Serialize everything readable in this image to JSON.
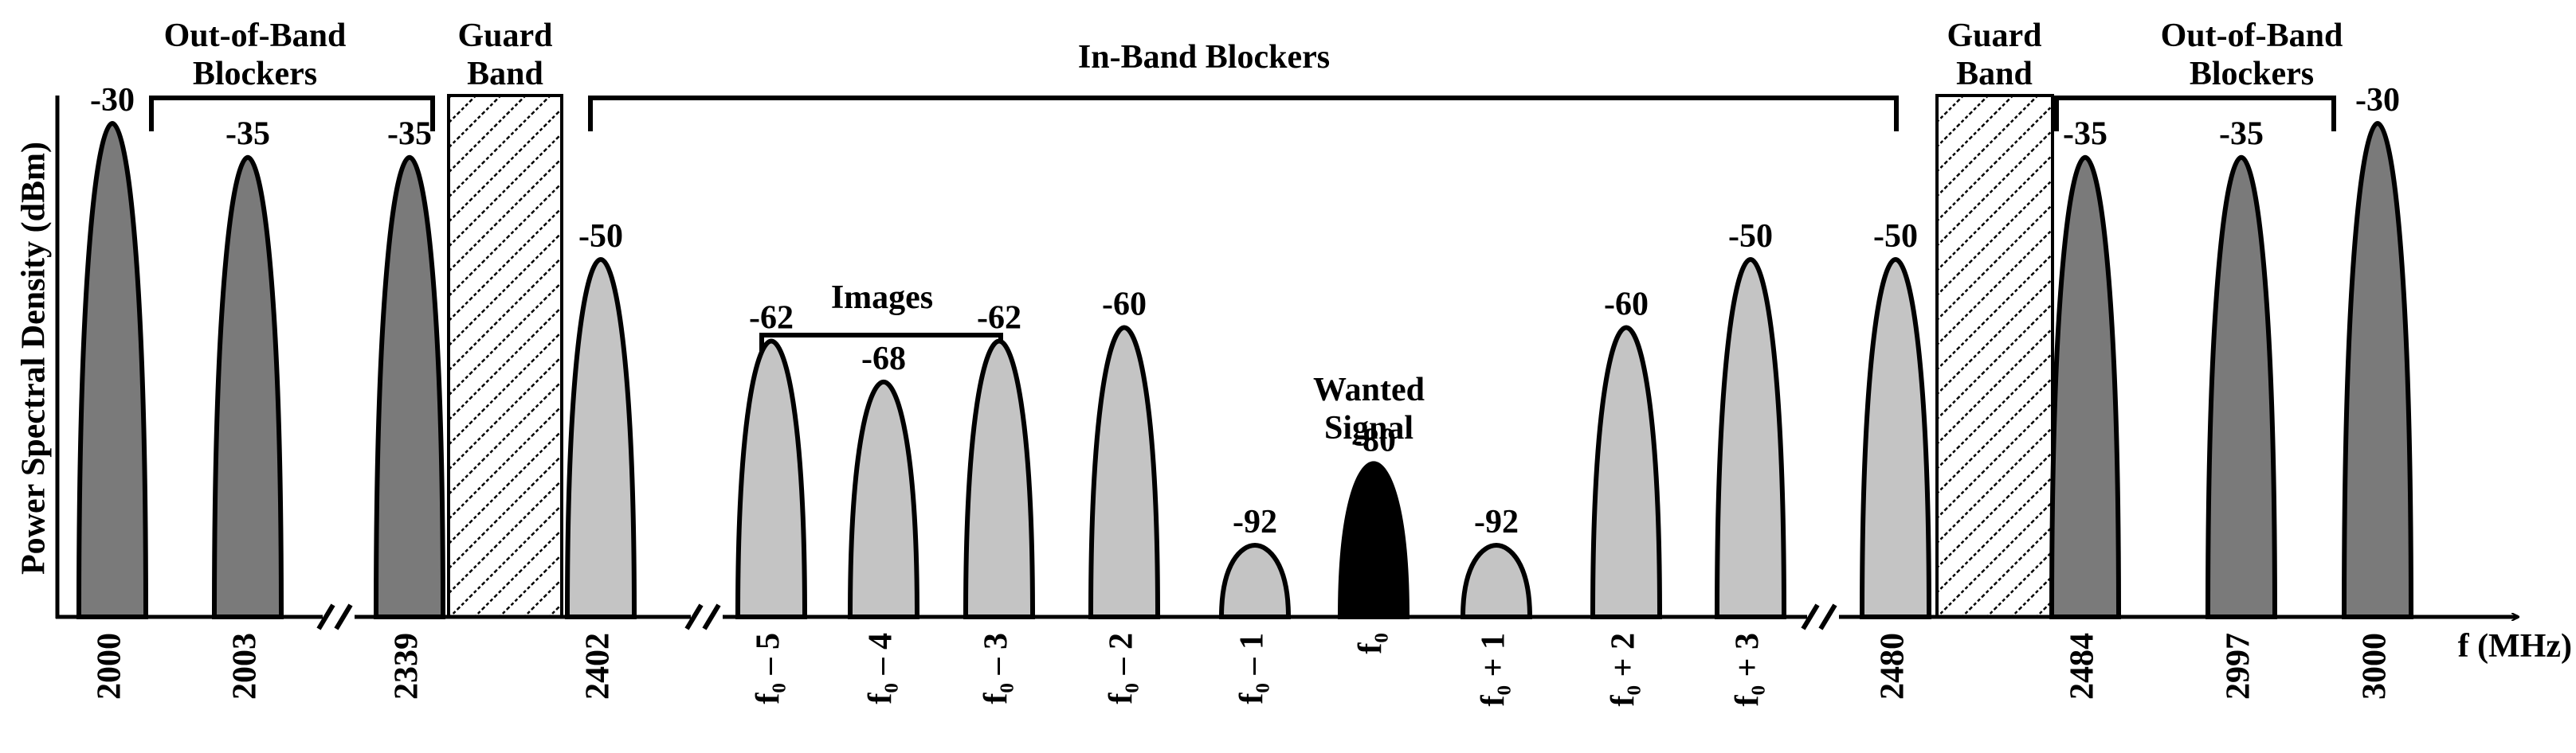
{
  "chart_data": {
    "type": "spectrum",
    "y_label": "Power Spectral Density (dBm)",
    "x_label": "f (MHz)",
    "categories": [
      "2000",
      "2003",
      "2339",
      "2402",
      "f₀ – 5",
      "f₀ – 4",
      "f₀ – 3",
      "f₀ – 2",
      "f₀ – 1",
      "f₀",
      "f₀ + 1",
      "f₀ + 2",
      "f₀ + 3",
      "2480",
      "2484",
      "2997",
      "3000"
    ],
    "values": [
      -30,
      -35,
      -35,
      -50,
      -62,
      -68,
      -62,
      -60,
      -92,
      -80,
      -92,
      -60,
      -50,
      -50,
      -35,
      -35,
      -30
    ],
    "colors": [
      "#7a7a7a",
      "#7a7a7a",
      "#7a7a7a",
      "#c4c4c4",
      "#c4c4c4",
      "#c4c4c4",
      "#c4c4c4",
      "#c4c4c4",
      "#c4c4c4",
      "#000000",
      "#c4c4c4",
      "#c4c4c4",
      "#c4c4c4",
      "#c4c4c4",
      "#7a7a7a",
      "#7a7a7a",
      "#7a7a7a"
    ],
    "annotations": [
      {
        "lines": [
          "Out-of-Band",
          "Blockers"
        ]
      },
      {
        "lines": [
          "Guard",
          "Band"
        ]
      },
      {
        "lines": [
          "In-Band Blockers"
        ]
      },
      {
        "lines": [
          "Guard",
          "Band"
        ]
      },
      {
        "lines": [
          "Out-of-Band",
          "Blockers"
        ]
      },
      {
        "lines": [
          "Images"
        ]
      },
      {
        "lines": [
          "Wanted",
          "Signal"
        ]
      }
    ]
  }
}
